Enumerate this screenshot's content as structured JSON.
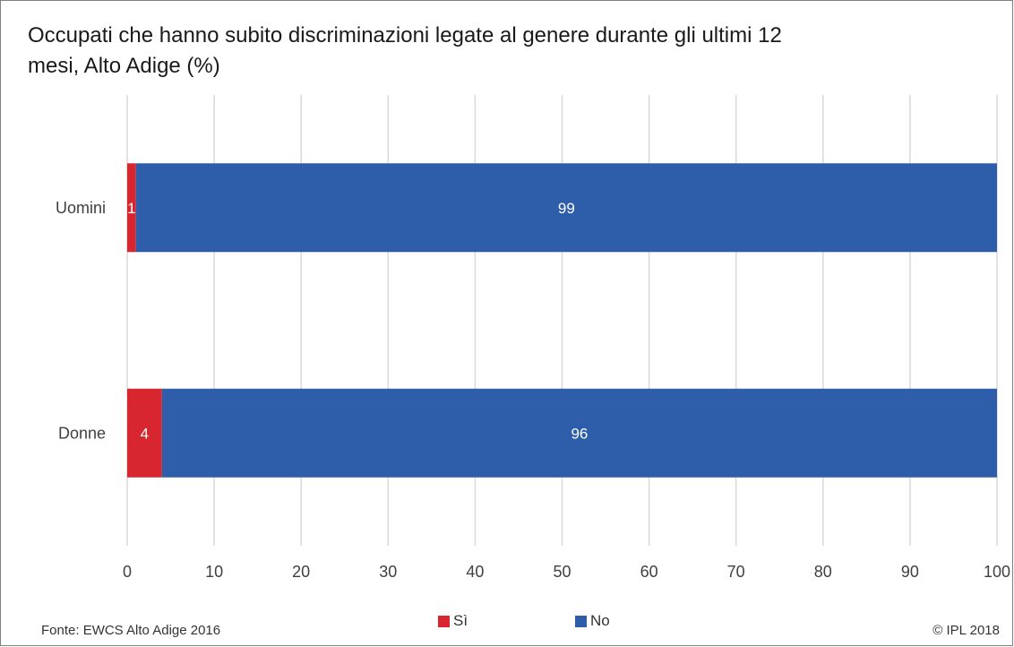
{
  "chart_data": {
    "type": "bar",
    "orientation": "horizontal",
    "stacked": true,
    "title": "Occupati che hanno subito discriminazioni legate al genere durante gli ultimi 12 mesi, Alto Adige (%)",
    "categories": [
      "Uomini",
      "Donne"
    ],
    "series": [
      {
        "name": "Sì",
        "values": [
          1,
          4
        ],
        "color": "#d7262f"
      },
      {
        "name": "No",
        "values": [
          99,
          96
        ],
        "color": "#2e5ea9"
      }
    ],
    "xlim": [
      0,
      100
    ],
    "xticks": [
      0,
      10,
      20,
      30,
      40,
      50,
      60,
      70,
      80,
      90,
      100
    ],
    "grid": "vertical",
    "legend_position": "bottom",
    "source": "Fonte: EWCS Alto Adige 2016",
    "copyright": "© IPL 2018"
  }
}
